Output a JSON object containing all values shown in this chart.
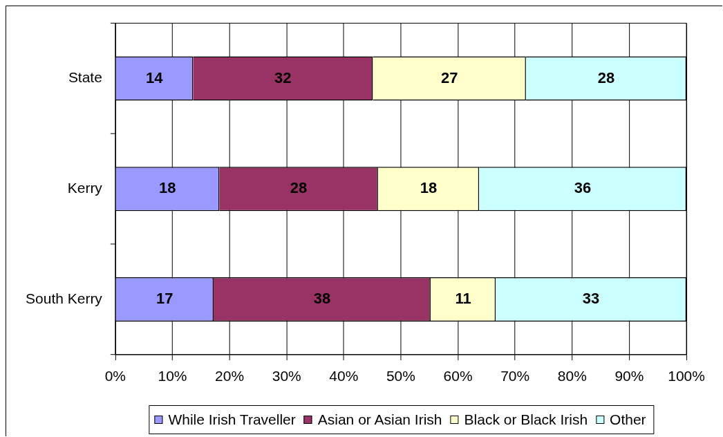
{
  "chart_data": {
    "type": "bar",
    "orientation": "horizontal",
    "stacked": true,
    "categories": [
      "State",
      "Kerry",
      "South Kerry"
    ],
    "series": [
      {
        "name": "While Irish Traveller",
        "color": "#9999ff",
        "values": [
          13.6,
          18.2,
          17.2
        ],
        "value_labels": [
          "14",
          "18",
          "17"
        ]
      },
      {
        "name": "Asian or Asian Irish",
        "color": "#993366",
        "values": [
          31.5,
          27.8,
          38.0
        ],
        "value_labels": [
          "32",
          "28",
          "38"
        ]
      },
      {
        "name": "Black or Black Irish",
        "color": "#ffffcc",
        "values": [
          26.8,
          17.7,
          11.4
        ],
        "value_labels": [
          "27",
          "18",
          "11"
        ]
      },
      {
        "name": "Other",
        "color": "#ccffff",
        "values": [
          28.1,
          36.3,
          33.4
        ],
        "value_labels": [
          "28",
          "36",
          "33"
        ]
      }
    ],
    "xlim": [
      0,
      100
    ],
    "xticks": [
      {
        "value": 0,
        "label": "0%"
      },
      {
        "value": 10,
        "label": "10%"
      },
      {
        "value": 20,
        "label": "20%"
      },
      {
        "value": 30,
        "label": "30%"
      },
      {
        "value": 40,
        "label": "40%"
      },
      {
        "value": 50,
        "label": "50%"
      },
      {
        "value": 60,
        "label": "60%"
      },
      {
        "value": 70,
        "label": "70%"
      },
      {
        "value": 80,
        "label": "80%"
      },
      {
        "value": 90,
        "label": "90%"
      },
      {
        "value": 100,
        "label": "100%"
      }
    ],
    "grid": "x",
    "legend": "bottom"
  }
}
